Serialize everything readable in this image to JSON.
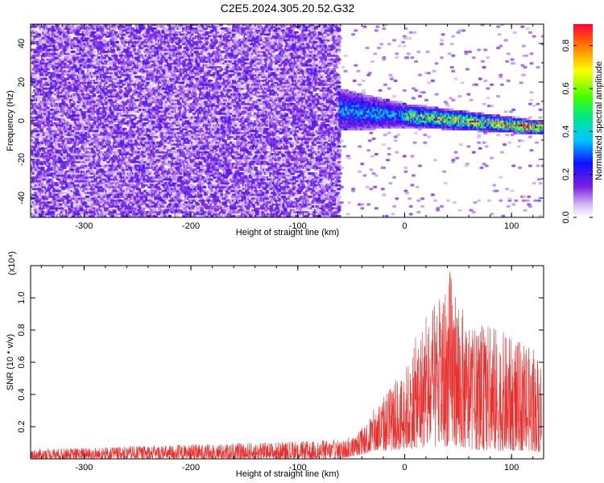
{
  "title": "C2E5.2024.305.20.52.G32",
  "chart_data": [
    {
      "type": "heatmap",
      "name": "spectrogram",
      "xlabel": "Height of straight line (km)",
      "ylabel": "Frequency (Hz)",
      "xlim": [
        -350,
        130
      ],
      "ylim": [
        -50,
        50
      ],
      "xticks": [
        -300,
        -200,
        -100,
        0,
        100
      ],
      "yticks": [
        -40,
        -20,
        0,
        20,
        40
      ],
      "colorbar": {
        "label": "Normalized spectral amplitude",
        "range": [
          0.0,
          0.9
        ],
        "ticks": [
          0.0,
          0.2,
          0.4,
          0.6,
          0.8
        ],
        "colormap": "rainbow (white → violet → blue → cyan → green → yellow → red)"
      },
      "regions": [
        {
          "x_range": [
            -350,
            -63
          ],
          "freq_range": [
            -50,
            50
          ],
          "amplitude": "low (0.02–0.2), broadband noise"
        },
        {
          "x_range": [
            -63,
            0
          ],
          "freq_range": [
            -8,
            15
          ],
          "amplitude": "0.2–0.4, signal band centered ~5 Hz"
        },
        {
          "x_range": [
            0,
            128
          ],
          "freq_range": [
            -6,
            6
          ],
          "amplitude": "0.4–0.9, narrowing band drifting from ~3 Hz to ~-4 Hz"
        }
      ]
    },
    {
      "type": "line",
      "name": "snr",
      "xlabel": "Height of straight line (km)",
      "ylabel": "SNR (10 * v/v)",
      "y_multiplier": "(x10⁴)",
      "xlim": [
        -350,
        130
      ],
      "ylim": [
        0,
        1.2
      ],
      "xticks": [
        -300,
        -200,
        -100,
        0,
        100
      ],
      "yticks": [
        0.2,
        0.4,
        0.6,
        0.8,
        1.0
      ],
      "color": "#e8302e",
      "envelope": {
        "x": [
          -350,
          -300,
          -250,
          -200,
          -150,
          -100,
          -60,
          -45,
          -30,
          -15,
          0,
          15,
          30,
          43,
          60,
          80,
          100,
          115,
          128
        ],
        "y_max": [
          0.06,
          0.07,
          0.08,
          0.09,
          0.1,
          0.11,
          0.12,
          0.15,
          0.3,
          0.45,
          0.55,
          0.85,
          0.97,
          1.2,
          0.8,
          0.85,
          0.75,
          0.7,
          0.65
        ],
        "y_min": [
          0.0,
          0.0,
          0.0,
          0.0,
          0.0,
          0.0,
          0.0,
          0.02,
          0.04,
          0.05,
          0.06,
          0.07,
          0.07,
          0.08,
          0.06,
          0.05,
          0.05,
          0.05,
          0.04
        ]
      }
    }
  ]
}
